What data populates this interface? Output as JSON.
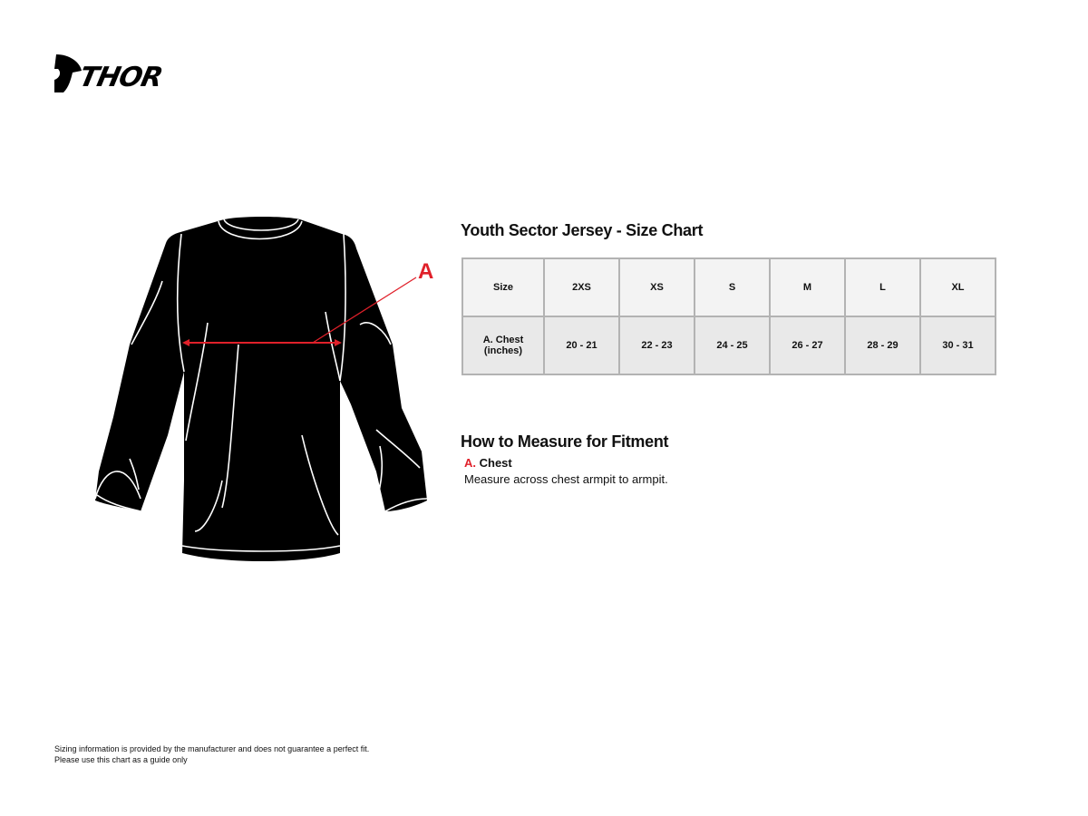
{
  "brand": {
    "logo_text": "THOR"
  },
  "diagram": {
    "marker_label": "A",
    "accent_color": "#e0202a"
  },
  "size_chart": {
    "title": "Youth Sector Jersey - Size Chart",
    "header": [
      "Size",
      "2XS",
      "XS",
      "S",
      "M",
      "L",
      "XL"
    ],
    "rows": [
      [
        "A. Chest (inches)",
        "20 - 21",
        "22 - 23",
        "24 - 25",
        "26 - 27",
        "28 - 29",
        "30 - 31"
      ]
    ]
  },
  "how_to_measure": {
    "title": "How to Measure for Fitment",
    "items": [
      {
        "letter": "A.",
        "name": "Chest",
        "description": "Measure across chest armpit to armpit."
      }
    ]
  },
  "footer": {
    "line1": "Sizing information is provided by the manufacturer and does not guarantee a perfect fit.",
    "line2": "Please use this chart as a guide only"
  }
}
